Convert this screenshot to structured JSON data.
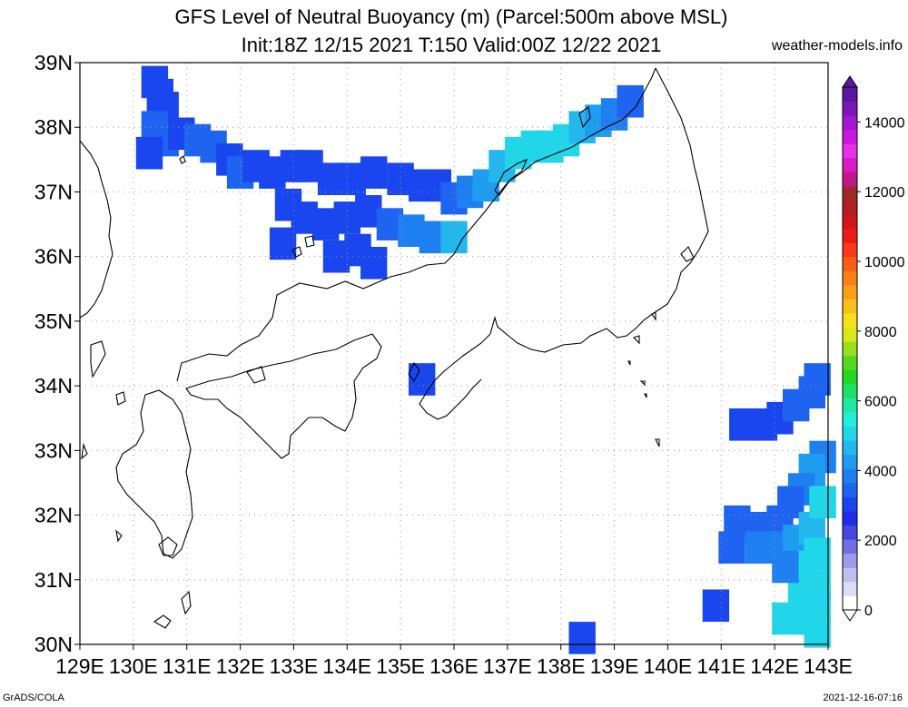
{
  "title_line1": "GFS Level of Neutral Buoyancy (m) (Parcel:500m above MSL)",
  "title_line2": "Init:18Z 12/15 2021 T:150 Valid:00Z 12/22 2021",
  "site": "weather-models.info",
  "credit_left": "GrADS/COLA",
  "credit_right": "2021-12-16-07:16",
  "map": {
    "lon_range": [
      129,
      143
    ],
    "lat_range": [
      30,
      39
    ],
    "lon_labels": [
      "129E",
      "130E",
      "131E",
      "132E",
      "133E",
      "134E",
      "135E",
      "136E",
      "137E",
      "138E",
      "139E",
      "140E",
      "141E",
      "142E",
      "143E"
    ],
    "lat_labels": [
      "30N",
      "31N",
      "32N",
      "33N",
      "34N",
      "35N",
      "36N",
      "37N",
      "38N",
      "39N"
    ],
    "grid": "dotted"
  },
  "colorbar": {
    "labels": [
      "0",
      "2000",
      "4000",
      "6000",
      "8000",
      "10000",
      "12000",
      "14000"
    ],
    "colors": [
      "#ffffff",
      "#dcdcf4",
      "#c0c0f0",
      "#9c9ce8",
      "#7070e0",
      "#4646e0",
      "#1e2ee8",
      "#1a46f0",
      "#1e64f0",
      "#1e80f0",
      "#1e9cf0",
      "#22b8ee",
      "#22d6ea",
      "#22eedc",
      "#20e8a0",
      "#20e060",
      "#22d822",
      "#58d81e",
      "#98e01a",
      "#d8e818",
      "#f8e018",
      "#f8c018",
      "#f8a018",
      "#f88018",
      "#f85c18",
      "#f83a18",
      "#ee1a18",
      "#d0181c",
      "#b02020",
      "#a02a2a",
      "#c01888",
      "#dc18c8",
      "#e830e8",
      "#c818e0",
      "#a018d0",
      "#7c18b8",
      "#5c189c"
    ]
  },
  "cells": [
    [
      130.4,
      38.7,
      "#1a46f0"
    ],
    [
      130.5,
      38.5,
      "#1a46f0"
    ],
    [
      130.6,
      38.3,
      "#1a46f0"
    ],
    [
      130.4,
      38.0,
      "#1e64f0"
    ],
    [
      130.6,
      37.8,
      "#1e64f0"
    ],
    [
      130.9,
      37.9,
      "#1a46f0"
    ],
    [
      131.2,
      37.8,
      "#1e64f0"
    ],
    [
      131.5,
      37.7,
      "#1e64f0"
    ],
    [
      130.3,
      37.6,
      "#1a46f0"
    ],
    [
      131.8,
      37.5,
      "#1a46f0"
    ],
    [
      132.0,
      37.3,
      "#1e64f0"
    ],
    [
      132.3,
      37.4,
      "#1a46f0"
    ],
    [
      132.6,
      37.3,
      "#1a46f0"
    ],
    [
      133.0,
      37.4,
      "#1a46f0"
    ],
    [
      133.3,
      37.4,
      "#1a46f0"
    ],
    [
      133.7,
      37.2,
      "#1a46f0"
    ],
    [
      134.1,
      37.2,
      "#1a46f0"
    ],
    [
      134.5,
      37.3,
      "#1a46f0"
    ],
    [
      135.0,
      37.2,
      "#1a46f0"
    ],
    [
      135.4,
      37.1,
      "#1a46f0"
    ],
    [
      135.7,
      37.1,
      "#1a46f0"
    ],
    [
      136.0,
      36.9,
      "#1e64f0"
    ],
    [
      136.3,
      37.0,
      "#1e80f0"
    ],
    [
      136.6,
      37.1,
      "#1e9cf0"
    ],
    [
      136.9,
      37.4,
      "#22b8ee"
    ],
    [
      137.2,
      37.6,
      "#22d6ea"
    ],
    [
      137.5,
      37.7,
      "#22d6ea"
    ],
    [
      137.8,
      37.7,
      "#22d6ea"
    ],
    [
      138.1,
      37.8,
      "#22d6ea"
    ],
    [
      138.4,
      38.0,
      "#22b8ee"
    ],
    [
      138.7,
      38.1,
      "#1e9cf0"
    ],
    [
      139.0,
      38.2,
      "#1e80f0"
    ],
    [
      139.3,
      38.4,
      "#1e64f0"
    ],
    [
      132.9,
      36.8,
      "#1a46f0"
    ],
    [
      133.2,
      36.6,
      "#1a46f0"
    ],
    [
      133.6,
      36.5,
      "#1a46f0"
    ],
    [
      134.0,
      36.6,
      "#1a46f0"
    ],
    [
      134.4,
      36.7,
      "#1a46f0"
    ],
    [
      134.8,
      36.5,
      "#1e64f0"
    ],
    [
      135.2,
      36.4,
      "#1e80f0"
    ],
    [
      135.6,
      36.3,
      "#1e80f0"
    ],
    [
      136.0,
      36.3,
      "#22b8ee"
    ],
    [
      133.8,
      36.0,
      "#1a46f0"
    ],
    [
      134.2,
      36.1,
      "#1a46f0"
    ],
    [
      134.5,
      35.9,
      "#1a46f0"
    ],
    [
      132.8,
      36.2,
      "#1a46f0"
    ],
    [
      135.4,
      34.1,
      "#1a46f0"
    ],
    [
      141.4,
      33.4,
      "#1a46f0"
    ],
    [
      141.8,
      33.4,
      "#1a46f0"
    ],
    [
      142.1,
      33.5,
      "#1a46f0"
    ],
    [
      142.4,
      33.7,
      "#1e64f0"
    ],
    [
      142.7,
      33.9,
      "#1e64f0"
    ],
    [
      142.8,
      34.1,
      "#1e64f0"
    ],
    [
      142.9,
      32.9,
      "#1e80f0"
    ],
    [
      142.7,
      32.7,
      "#1e9cf0"
    ],
    [
      142.5,
      32.4,
      "#1e80f0"
    ],
    [
      142.3,
      32.2,
      "#1e64f0"
    ],
    [
      141.3,
      31.9,
      "#1e64f0"
    ],
    [
      141.7,
      31.8,
      "#1e64f0"
    ],
    [
      142.1,
      31.9,
      "#1e64f0"
    ],
    [
      141.2,
      31.5,
      "#1e64f0"
    ],
    [
      141.7,
      31.5,
      "#1e80f0"
    ],
    [
      142.1,
      31.5,
      "#1e80f0"
    ],
    [
      142.4,
      31.6,
      "#1e9cf0"
    ],
    [
      142.7,
      31.8,
      "#22b8ee"
    ],
    [
      142.9,
      32.2,
      "#22d6ea"
    ],
    [
      142.5,
      31.2,
      "#22d6ea"
    ],
    [
      142.8,
      31.4,
      "#22d6ea"
    ],
    [
      142.5,
      30.9,
      "#22d6ea"
    ],
    [
      142.8,
      30.9,
      "#22d6ea"
    ],
    [
      142.5,
      30.6,
      "#22d6ea"
    ],
    [
      142.8,
      30.6,
      "#22d6ea"
    ],
    [
      142.2,
      30.4,
      "#22d6ea"
    ],
    [
      142.6,
      30.4,
      "#22d6ea"
    ],
    [
      142.8,
      30.2,
      "#22d6ea"
    ],
    [
      140.9,
      30.6,
      "#1a46f0"
    ],
    [
      138.4,
      30.1,
      "#1a46f0"
    ],
    [
      142.2,
      31.2,
      "#1e80f0"
    ]
  ]
}
